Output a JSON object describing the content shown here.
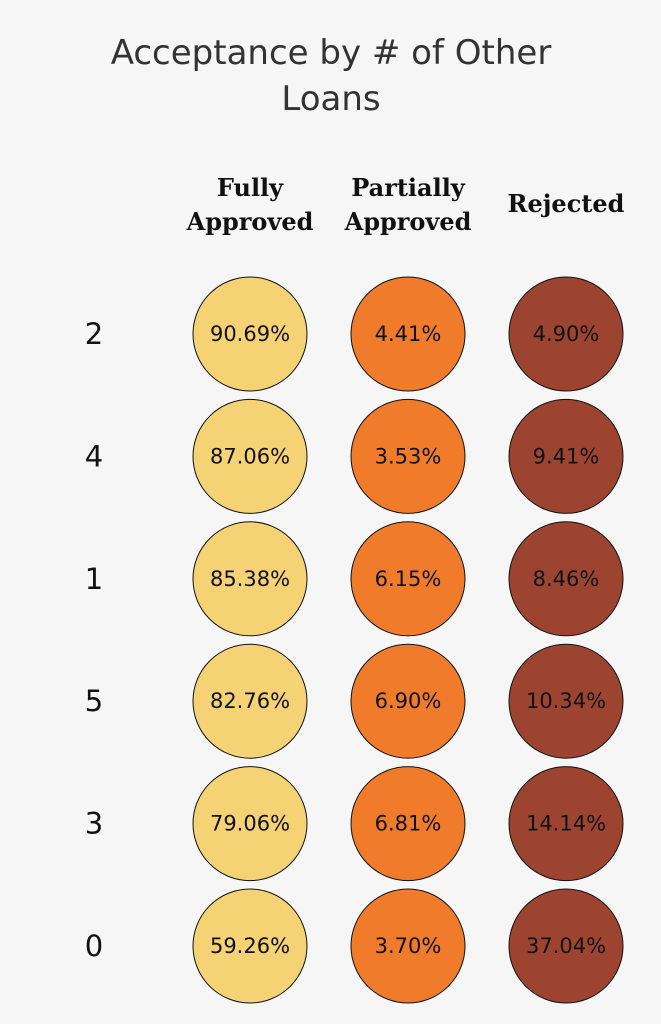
{
  "chart_data": {
    "type": "table",
    "title_lines": [
      "Acceptance by # of Other",
      "Loans"
    ],
    "columns": [
      {
        "label_lines": [
          "Fully",
          "Approved"
        ],
        "color": "#f5d274"
      },
      {
        "label_lines": [
          "Partially",
          "Approved"
        ],
        "color": "#ef7b2b"
      },
      {
        "label_lines": [
          "Rejected"
        ],
        "color": "#9d4431"
      }
    ],
    "rows": [
      {
        "label": "2",
        "values": [
          "90.69%",
          "4.41%",
          "4.90%"
        ]
      },
      {
        "label": "4",
        "values": [
          "87.06%",
          "3.53%",
          "9.41%"
        ]
      },
      {
        "label": "1",
        "values": [
          "85.38%",
          "6.15%",
          "8.46%"
        ]
      },
      {
        "label": "5",
        "values": [
          "82.76%",
          "6.90%",
          "10.34%"
        ]
      },
      {
        "label": "3",
        "values": [
          "79.06%",
          "6.81%",
          "14.14%"
        ]
      },
      {
        "label": "0",
        "values": [
          "59.26%",
          "3.70%",
          "37.04%"
        ]
      }
    ]
  }
}
